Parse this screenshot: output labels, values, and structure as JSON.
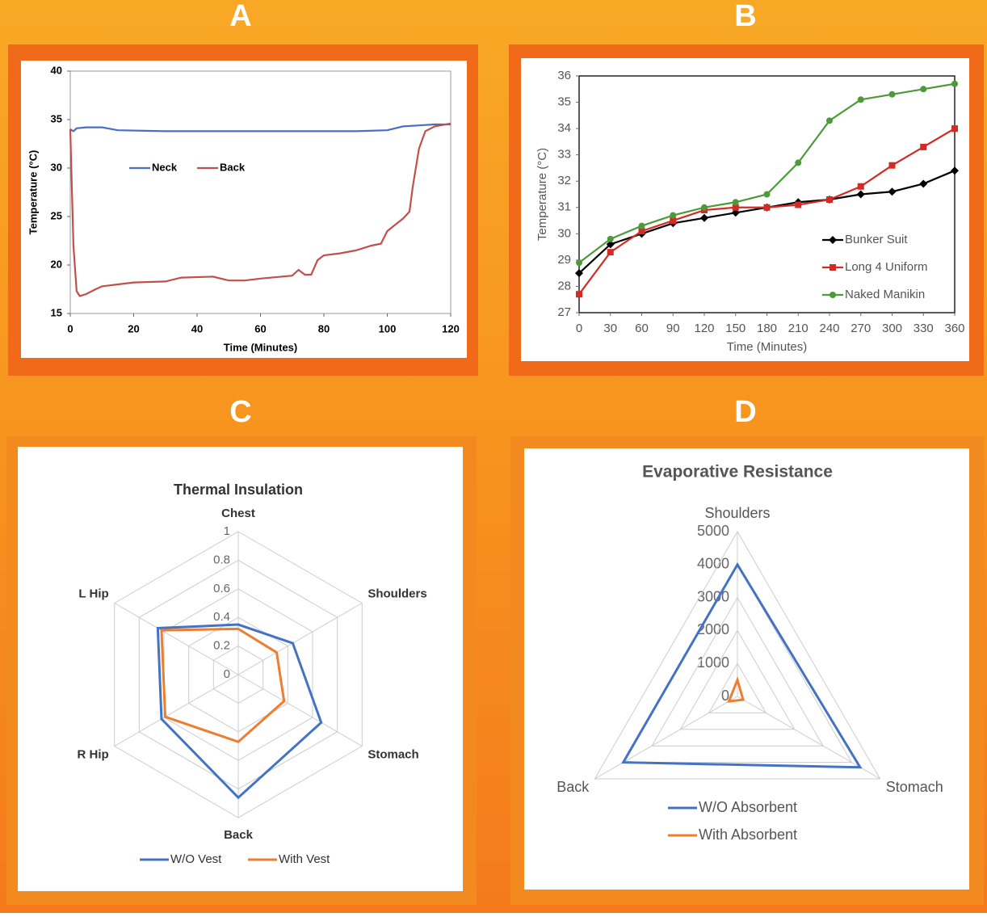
{
  "chart_data": [
    {
      "panel": "A",
      "type": "line",
      "x_label": "Time (Minutes)",
      "y_label": "Temperature (°C)",
      "xlim": [
        0,
        120
      ],
      "xticks": [
        0,
        20,
        40,
        60,
        80,
        100,
        120
      ],
      "ylim": [
        15,
        40
      ],
      "yticks": [
        15,
        20,
        25,
        30,
        35,
        40
      ],
      "grid": false,
      "legend": "center-left",
      "series": [
        {
          "name": "Neck",
          "color": "#4a6fc1",
          "x": [
            0,
            1,
            2,
            5,
            10,
            15,
            30,
            60,
            90,
            100,
            105,
            110,
            115,
            120
          ],
          "values": [
            34,
            33.8,
            34.1,
            34.2,
            34.2,
            33.9,
            33.8,
            33.8,
            33.8,
            33.9,
            34.3,
            34.4,
            34.5,
            34.5
          ]
        },
        {
          "name": "Back",
          "color": "#c0504d",
          "x": [
            0,
            1,
            2,
            3,
            5,
            8,
            10,
            15,
            20,
            30,
            35,
            45,
            50,
            55,
            60,
            70,
            72,
            74,
            76,
            78,
            80,
            85,
            90,
            95,
            98,
            100,
            105,
            107,
            108,
            110,
            112,
            115,
            120
          ],
          "values": [
            34,
            22,
            17.3,
            16.8,
            17,
            17.5,
            17.8,
            18,
            18.2,
            18.3,
            18.7,
            18.8,
            18.4,
            18.4,
            18.6,
            18.9,
            19.5,
            19,
            19,
            20.5,
            21,
            21.2,
            21.5,
            22,
            22.2,
            23.5,
            24.8,
            25.5,
            28,
            32,
            33.8,
            34.3,
            34.6
          ]
        }
      ]
    },
    {
      "panel": "B",
      "type": "line",
      "x_label": "Time (Minutes)",
      "y_label": "Temperature (°C)",
      "x": [
        0,
        30,
        60,
        90,
        120,
        150,
        180,
        210,
        240,
        270,
        300,
        330,
        360
      ],
      "xlim": [
        0,
        360
      ],
      "xticks": [
        0,
        30,
        60,
        90,
        120,
        150,
        180,
        210,
        240,
        270,
        300,
        330,
        360
      ],
      "ylim": [
        27,
        36
      ],
      "yticks": [
        27,
        28,
        29,
        30,
        31,
        32,
        33,
        34,
        35,
        36
      ],
      "grid": false,
      "legend": "lower-right",
      "series": [
        {
          "name": "Bunker Suit",
          "color": "#000000",
          "marker": "diamond",
          "values": [
            28.5,
            29.6,
            30.0,
            30.4,
            30.6,
            30.8,
            31.0,
            31.2,
            31.3,
            31.5,
            31.6,
            31.9,
            32.4
          ]
        },
        {
          "name": "Long 4 Uniform",
          "color": "#d42a25",
          "marker": "square",
          "values": [
            27.7,
            29.3,
            30.1,
            30.5,
            30.9,
            31.0,
            31.0,
            31.1,
            31.3,
            31.8,
            32.6,
            33.3,
            34.0
          ]
        },
        {
          "name": "Naked Manikin",
          "color": "#4e9a3a",
          "marker": "circle",
          "values": [
            28.9,
            29.8,
            30.3,
            30.7,
            31.0,
            31.2,
            31.5,
            32.7,
            34.3,
            35.1,
            35.3,
            35.5,
            35.7
          ]
        }
      ]
    },
    {
      "panel": "C",
      "type": "radar",
      "title": "Thermal Insulation",
      "categories": [
        "Chest",
        "Shoulders",
        "Stomach",
        "Back",
        "R Hip",
        "L Hip"
      ],
      "ylim": [
        0,
        1
      ],
      "yticks": [
        0,
        0.2,
        0.4,
        0.6,
        0.8,
        1
      ],
      "grid": true,
      "legend": "bottom",
      "series": [
        {
          "name": "W/O Vest",
          "color": "#4472c4",
          "values": [
            0.35,
            0.44,
            0.67,
            0.86,
            0.62,
            0.65
          ]
        },
        {
          "name": "With Vest",
          "color": "#ed7d31",
          "values": [
            0.32,
            0.31,
            0.37,
            0.47,
            0.59,
            0.62
          ]
        }
      ]
    },
    {
      "panel": "D",
      "type": "radar",
      "title": "Evaporative Resistance",
      "categories": [
        "Shoulders",
        "Stomach",
        "Back"
      ],
      "ylim": [
        0,
        5000
      ],
      "yticks": [
        0,
        1000,
        2000,
        3000,
        4000,
        5000
      ],
      "grid": true,
      "legend": "bottom",
      "series": [
        {
          "name": "W/O Absorbent",
          "color": "#4472c4",
          "values": [
            4000,
            4300,
            4000
          ]
        },
        {
          "name": "With Absorbent",
          "color": "#ed7d31",
          "values": [
            500,
            200,
            300
          ]
        }
      ]
    }
  ]
}
